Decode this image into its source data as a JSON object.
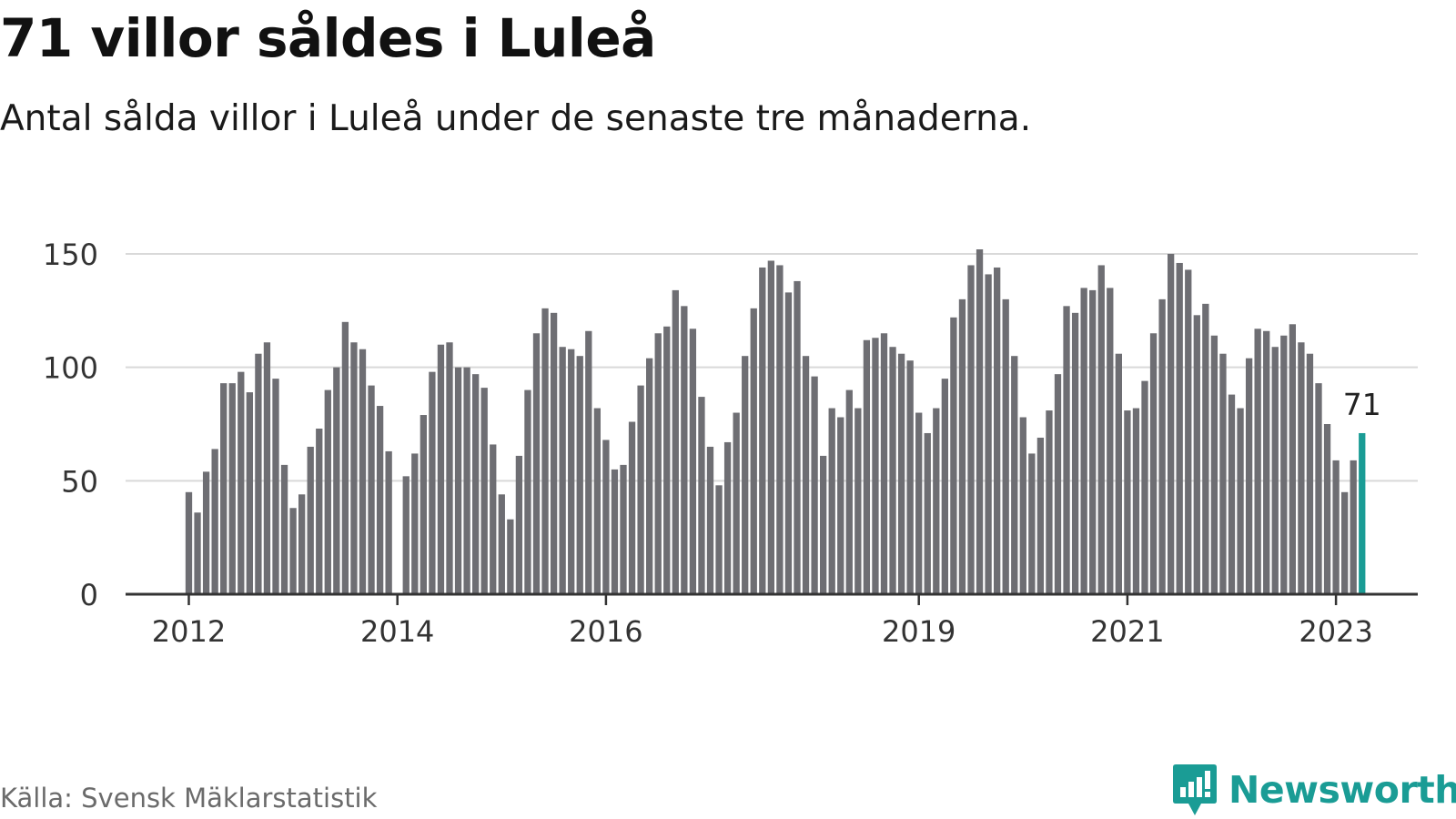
{
  "header": {
    "title": "71 villor såldes i Luleå",
    "subtitle": "Antal sålda villor i Luleå under de senaste tre månaderna."
  },
  "footer": {
    "source": "Källa: Svensk Mäklarstatistik",
    "brand": "Newsworthy"
  },
  "colors": {
    "bar": "#6e6e73",
    "highlight": "#1a9c95",
    "grid": "#d9d9d9",
    "axis": "#333333",
    "brand": "#1a9c95"
  },
  "chart_data": {
    "type": "bar",
    "ylim": [
      0,
      150
    ],
    "yticks": [
      0,
      50,
      100,
      150
    ],
    "xticks": [
      "2012",
      "2014",
      "2016",
      "2019",
      "2021",
      "2023"
    ],
    "grid": true,
    "highlight_label": "71",
    "x_start": "2012-01",
    "series": [
      {
        "values": [
          45,
          36,
          54,
          64,
          93,
          93,
          98,
          89,
          106,
          111,
          95,
          57,
          38,
          44,
          65,
          73,
          90,
          100,
          120,
          111,
          108,
          92,
          83,
          63,
          0,
          52,
          62,
          79,
          98,
          110,
          111,
          100,
          100,
          97,
          91,
          66,
          44,
          33,
          61,
          90,
          115,
          126,
          124,
          109,
          108,
          105,
          116,
          82,
          68,
          55,
          57,
          76,
          92,
          104,
          115,
          118,
          134,
          127,
          117,
          87,
          65,
          48,
          67,
          80,
          105,
          126,
          144,
          147,
          145,
          133,
          138,
          105,
          96,
          61,
          82,
          78,
          90,
          82,
          112,
          113,
          115,
          109,
          106,
          103,
          80,
          71,
          82,
          95,
          122,
          130,
          145,
          152,
          141,
          144,
          130,
          105,
          78,
          62,
          69,
          81,
          97,
          127,
          124,
          135,
          134,
          145,
          135,
          106,
          81,
          82,
          94,
          115,
          130,
          150,
          146,
          143,
          123,
          128,
          114,
          106,
          88,
          82,
          104,
          117,
          116,
          109,
          114,
          119,
          111,
          106,
          93,
          75,
          59,
          45,
          59,
          71
        ]
      }
    ]
  }
}
